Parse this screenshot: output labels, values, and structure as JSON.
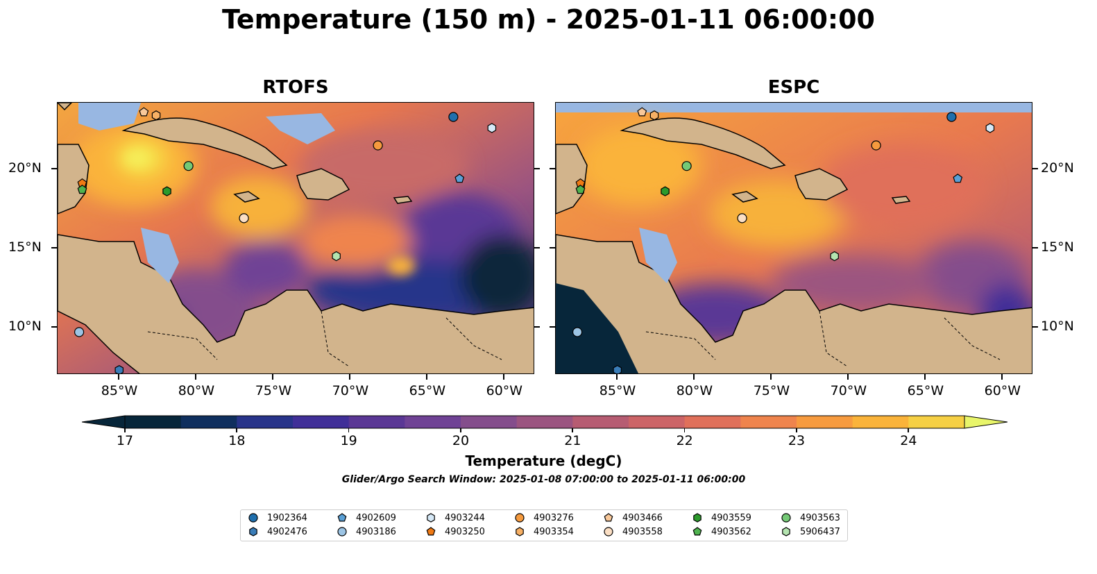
{
  "title": "Temperature (150 m) - 2025-01-11 06:00:00",
  "panels": [
    {
      "title": "RTOFS"
    },
    {
      "title": "ESPC"
    }
  ],
  "lon_ticks": [
    "85°W",
    "80°W",
    "75°W",
    "70°W",
    "65°W",
    "60°W"
  ],
  "lat_ticks": [
    "20°N",
    "15°N",
    "10°N"
  ],
  "colorbar": {
    "label": "Temperature (degC)",
    "ticks": [
      "17",
      "18",
      "19",
      "20",
      "21",
      "22",
      "23",
      "24"
    ],
    "colors": [
      "#07263a",
      "#0f2f5e",
      "#28348a",
      "#402f98",
      "#5a3795",
      "#6f4295",
      "#844d8c",
      "#9b5480",
      "#b65c72",
      "#cc6467",
      "#e0705a",
      "#ef844d",
      "#f79b3f",
      "#fab33a",
      "#f6d044"
    ],
    "under_color": "#07263a",
    "over_color": "#e8f56a"
  },
  "search_window": "Glider/Argo Search Window: 2025-01-08 07:00:00 to 2025-01-11 06:00:00",
  "legend": [
    {
      "id": "1902364",
      "marker": "circle",
      "color": "#1f6fad"
    },
    {
      "id": "4902476",
      "marker": "hexagon",
      "color": "#3a7db8"
    },
    {
      "id": "4902609",
      "marker": "pentagon",
      "color": "#5aa0d6"
    },
    {
      "id": "4903186",
      "marker": "circle",
      "color": "#9cc4e4"
    },
    {
      "id": "4903244",
      "marker": "hexagon",
      "color": "#d6e9f7"
    },
    {
      "id": "4903250",
      "marker": "pentagon",
      "color": "#f07a14"
    },
    {
      "id": "4903276",
      "marker": "circle",
      "color": "#f59a3e"
    },
    {
      "id": "4903354",
      "marker": "hexagon",
      "color": "#f7b065"
    },
    {
      "id": "4903466",
      "marker": "pentagon",
      "color": "#f8c89a"
    },
    {
      "id": "4903558",
      "marker": "circle",
      "color": "#fbdfc4"
    },
    {
      "id": "4903559",
      "marker": "hexagon",
      "color": "#2c9a2c"
    },
    {
      "id": "4903562",
      "marker": "pentagon",
      "color": "#4fb34f"
    },
    {
      "id": "4903563",
      "marker": "circle",
      "color": "#74c976"
    },
    {
      "id": "5906437",
      "marker": "hexagon",
      "color": "#b4e4b0"
    }
  ],
  "colors": {
    "land": "#d2b48c",
    "shelf_water": "#98b7e2",
    "deep_cold": "#07263a"
  }
}
